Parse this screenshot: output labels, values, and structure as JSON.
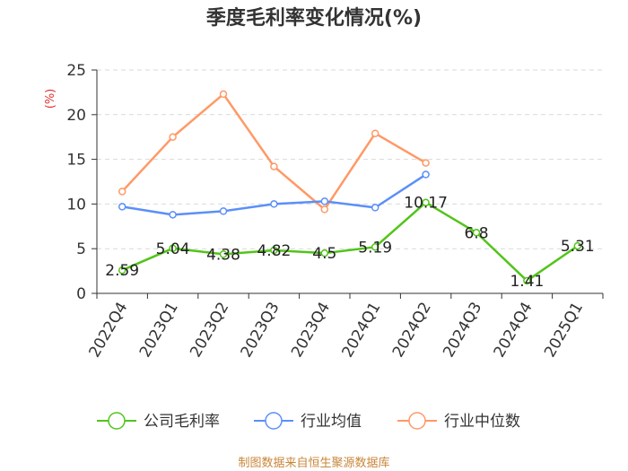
{
  "chart_data": {
    "type": "line",
    "title": "季度毛利率变化情况(%)",
    "ylabel": "(%)",
    "ylim": [
      0,
      25
    ],
    "yticks": [
      0,
      5,
      10,
      15,
      20,
      25
    ],
    "categories": [
      "2022Q4",
      "2023Q1",
      "2023Q2",
      "2023Q3",
      "2023Q4",
      "2024Q1",
      "2024Q2",
      "2024Q3",
      "2024Q4",
      "2025Q1"
    ],
    "series": [
      {
        "name": "公司毛利率",
        "color": "#52c41a",
        "values": [
          2.59,
          5.04,
          4.38,
          4.82,
          4.5,
          5.19,
          10.17,
          6.8,
          1.41,
          5.31
        ],
        "labels": [
          "2.59",
          "5.04",
          "4.38",
          "4.82",
          "4.5",
          "5.19",
          "10.17",
          "6.8",
          "1.41",
          "5.31"
        ]
      },
      {
        "name": "行业均值",
        "color": "#5b8ff9",
        "values": [
          9.7,
          8.8,
          9.2,
          10.0,
          10.3,
          9.6,
          13.3,
          null,
          null,
          null
        ]
      },
      {
        "name": "行业中位数",
        "color": "#ff9966",
        "values": [
          11.4,
          17.5,
          22.3,
          14.2,
          9.4,
          17.9,
          14.6,
          null,
          null,
          null
        ]
      }
    ],
    "grid": true,
    "legend": "bottom",
    "source": "制图数据来自恒生聚源数据库"
  }
}
